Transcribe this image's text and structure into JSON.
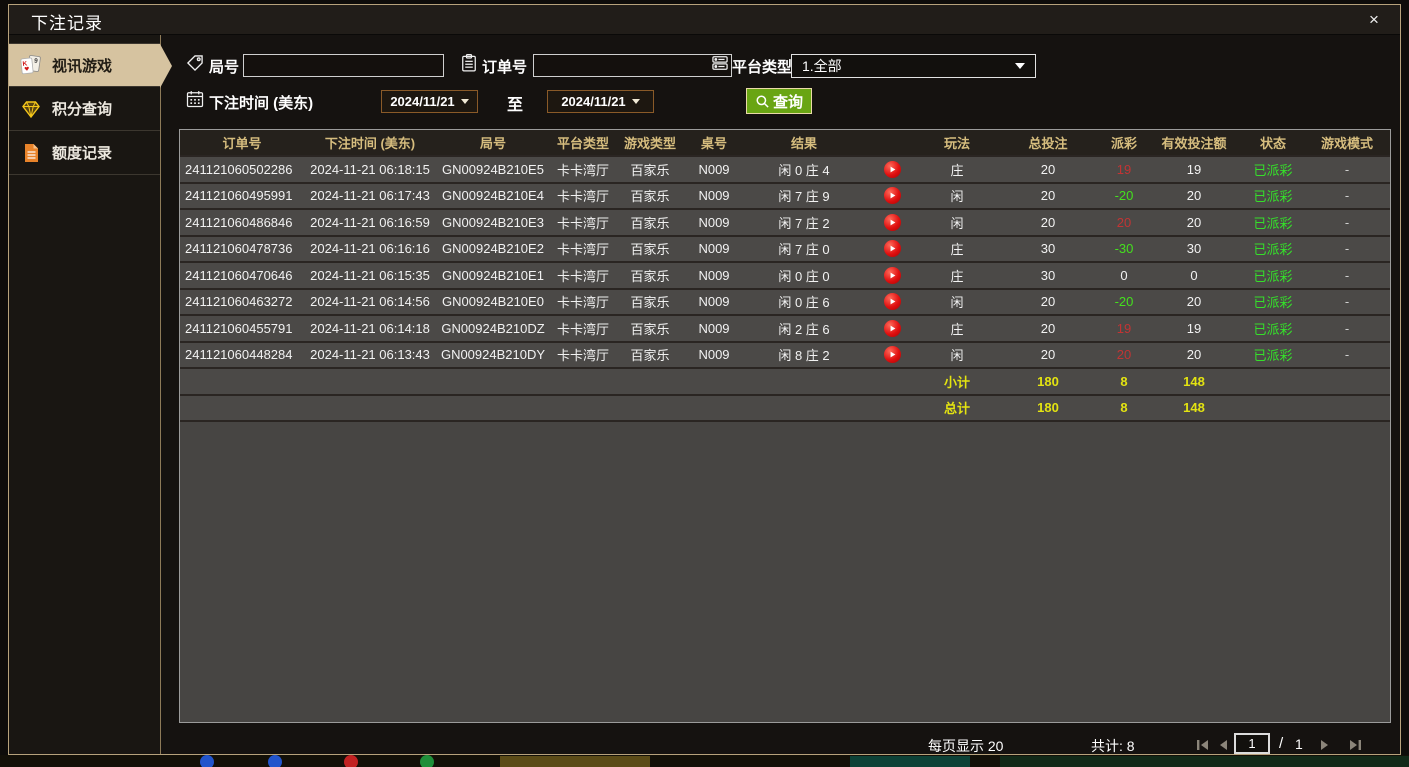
{
  "window": {
    "title": "下注记录",
    "close_label": "×"
  },
  "sidebar": {
    "items": [
      {
        "label": "视讯游戏",
        "icon": "playing-cards-icon",
        "selected": true
      },
      {
        "label": "积分查询",
        "icon": "diamond-icon",
        "selected": false
      },
      {
        "label": "额度记录",
        "icon": "document-icon",
        "selected": false
      }
    ]
  },
  "filters": {
    "round_label": "局号",
    "round_value": "",
    "order_label": "订单号",
    "order_value": "",
    "platform_label": "平台类型",
    "platform_value": "1.全部",
    "time_label": "下注时间 (美东)",
    "date_from": "2024/11/21",
    "to_label": "至",
    "date_to": "2024/11/21",
    "query_label": "查询"
  },
  "table": {
    "headers": [
      "订单号",
      "下注时间 (美东)",
      "局号",
      "平台类型",
      "游戏类型",
      "桌号",
      "结果",
      "玩法",
      "总投注",
      "派彩",
      "有效投注额",
      "状态",
      "游戏模式"
    ],
    "rows": [
      {
        "order_id": "241121060502286",
        "bet_time": "2024-11-21 06:18:15",
        "round_id": "GN00924B210E5",
        "platform": "卡卡湾厅",
        "game_type": "百家乐",
        "table_no": "N009",
        "result": "闲 0 庄 4",
        "play": "庄",
        "total_bet": "20",
        "payout": "19",
        "valid_bet": "19",
        "status": "已派彩",
        "mode": "-"
      },
      {
        "order_id": "241121060495991",
        "bet_time": "2024-11-21 06:17:43",
        "round_id": "GN00924B210E4",
        "platform": "卡卡湾厅",
        "game_type": "百家乐",
        "table_no": "N009",
        "result": "闲 7 庄 9",
        "play": "闲",
        "total_bet": "20",
        "payout": "-20",
        "valid_bet": "20",
        "status": "已派彩",
        "mode": "-"
      },
      {
        "order_id": "241121060486846",
        "bet_time": "2024-11-21 06:16:59",
        "round_id": "GN00924B210E3",
        "platform": "卡卡湾厅",
        "game_type": "百家乐",
        "table_no": "N009",
        "result": "闲 7 庄 2",
        "play": "闲",
        "total_bet": "20",
        "payout": "20",
        "valid_bet": "20",
        "status": "已派彩",
        "mode": "-"
      },
      {
        "order_id": "241121060478736",
        "bet_time": "2024-11-21 06:16:16",
        "round_id": "GN00924B210E2",
        "platform": "卡卡湾厅",
        "game_type": "百家乐",
        "table_no": "N009",
        "result": "闲 7 庄 0",
        "play": "庄",
        "total_bet": "30",
        "payout": "-30",
        "valid_bet": "30",
        "status": "已派彩",
        "mode": "-"
      },
      {
        "order_id": "241121060470646",
        "bet_time": "2024-11-21 06:15:35",
        "round_id": "GN00924B210E1",
        "platform": "卡卡湾厅",
        "game_type": "百家乐",
        "table_no": "N009",
        "result": "闲 0 庄 0",
        "play": "庄",
        "total_bet": "30",
        "payout": "0",
        "valid_bet": "0",
        "status": "已派彩",
        "mode": "-"
      },
      {
        "order_id": "241121060463272",
        "bet_time": "2024-11-21 06:14:56",
        "round_id": "GN00924B210E0",
        "platform": "卡卡湾厅",
        "game_type": "百家乐",
        "table_no": "N009",
        "result": "闲 0 庄 6",
        "play": "闲",
        "total_bet": "20",
        "payout": "-20",
        "valid_bet": "20",
        "status": "已派彩",
        "mode": "-"
      },
      {
        "order_id": "241121060455791",
        "bet_time": "2024-11-21 06:14:18",
        "round_id": "GN00924B210DZ",
        "platform": "卡卡湾厅",
        "game_type": "百家乐",
        "table_no": "N009",
        "result": "闲 2 庄 6",
        "play": "庄",
        "total_bet": "20",
        "payout": "19",
        "valid_bet": "19",
        "status": "已派彩",
        "mode": "-"
      },
      {
        "order_id": "241121060448284",
        "bet_time": "2024-11-21 06:13:43",
        "round_id": "GN00924B210DY",
        "platform": "卡卡湾厅",
        "game_type": "百家乐",
        "table_no": "N009",
        "result": "闲 8 庄 2",
        "play": "闲",
        "total_bet": "20",
        "payout": "20",
        "valid_bet": "20",
        "status": "已派彩",
        "mode": "-"
      }
    ],
    "subtotal": {
      "label": "小计",
      "total_bet": "180",
      "payout": "8",
      "valid_bet": "148"
    },
    "grand_total": {
      "label": "总计",
      "total_bet": "180",
      "payout": "8",
      "valid_bet": "148"
    }
  },
  "pagination": {
    "per_page_label": "每页显示 20",
    "total_label": "共计: 8",
    "page": "1",
    "separator": "/",
    "total_pages": "1"
  },
  "colors": {
    "accent_tan": "#d6c3a0",
    "header_gold": "#d6bd7e",
    "win_red": "#c23434",
    "loss_green": "#44e01e",
    "status_green": "#35e02a",
    "subtotal_yellow": "#e3e311",
    "query_green": "#69a513",
    "date_border": "#8a5a28",
    "row_gray": "#4b4947"
  }
}
